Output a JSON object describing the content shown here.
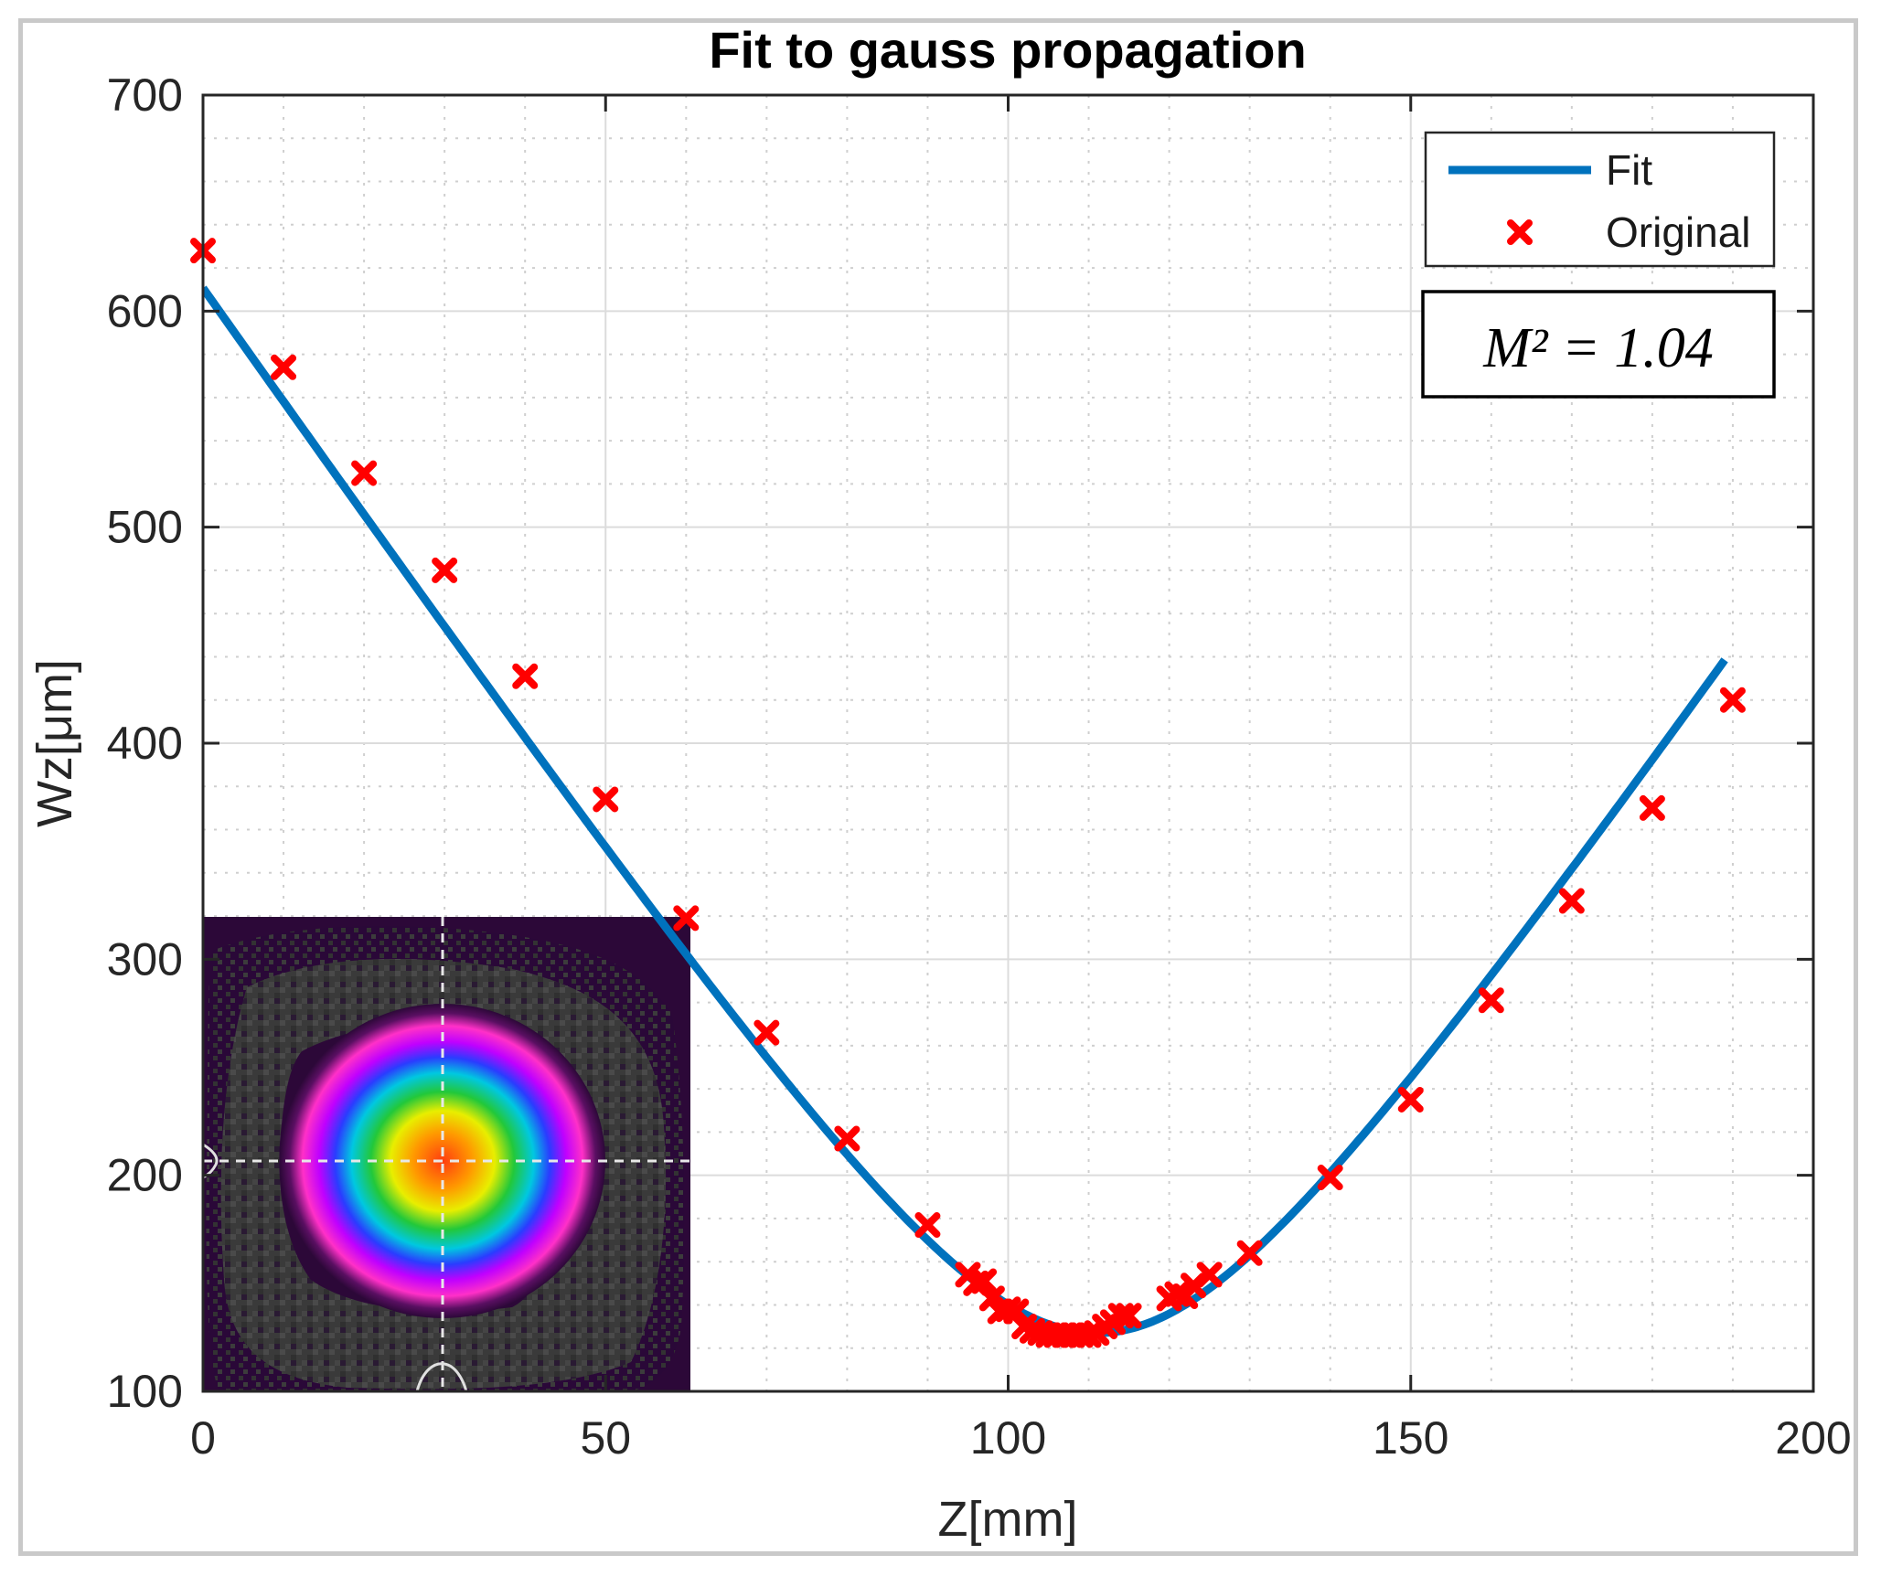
{
  "chart_data": {
    "type": "line",
    "title": "Fit to gauss propagation",
    "xlabel": "Z[mm]",
    "ylabel": "Wz[μm]",
    "xlim": [
      0,
      200
    ],
    "ylim": [
      100,
      700
    ],
    "xticks": [
      0,
      50,
      100,
      150,
      200
    ],
    "yticks": [
      100,
      200,
      300,
      400,
      500,
      600,
      700
    ],
    "grid": true,
    "minor_grid": true,
    "legend_position": "top-right",
    "series": [
      {
        "name": "Fit",
        "kind": "line",
        "color": "#0072bd",
        "model": "gaussian-beam",
        "w0": 127,
        "z0": 111,
        "zR": 23.6,
        "x_range": [
          0,
          189
        ]
      },
      {
        "name": "Original",
        "kind": "scatter",
        "marker": "x",
        "color": "#ff0000",
        "x": [
          0,
          10,
          20,
          30,
          40,
          50,
          60,
          70,
          80,
          90,
          95,
          96,
          97,
          98,
          99,
          100,
          101,
          102,
          103,
          104,
          105,
          106,
          107,
          108,
          109,
          110,
          111,
          112,
          113,
          114,
          115,
          120,
          121,
          122,
          123,
          125,
          130,
          140,
          150,
          160,
          170,
          180,
          190
        ],
        "y": [
          628,
          574,
          525,
          480,
          431,
          374,
          319,
          266,
          217,
          177,
          154,
          150,
          151,
          143,
          137,
          138,
          137,
          130,
          128,
          127,
          126,
          126,
          126,
          126,
          126,
          126,
          127,
          130,
          132,
          135,
          135,
          143,
          145,
          144,
          149,
          154,
          164,
          199,
          235,
          281,
          327,
          370,
          420
        ]
      }
    ],
    "annotation": "M² = 1.04",
    "inset": "beam-profile-image"
  }
}
